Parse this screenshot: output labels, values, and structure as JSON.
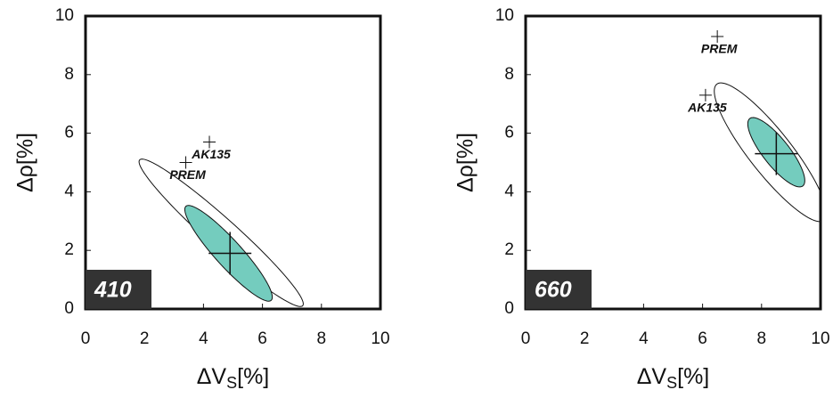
{
  "chart_data": [
    {
      "type": "scatter",
      "panel_label": "410",
      "xlabel": [
        "ΔV",
        "S",
        "[%]"
      ],
      "ylabel": "Δρ[%]",
      "xlim": [
        0,
        10
      ],
      "ylim": [
        0,
        10
      ],
      "xticks": [
        0,
        2,
        4,
        6,
        8,
        10
      ],
      "yticks": [
        0,
        2,
        4,
        6,
        8,
        10
      ],
      "ellipses": [
        {
          "center_x": 4.6,
          "center_y": 2.6,
          "semi_major": 3.72,
          "semi_minor": 0.5,
          "angle": -42,
          "color": "none"
        },
        {
          "center_x": 4.85,
          "center_y": 1.9,
          "semi_major": 2.16,
          "semi_minor": 0.45,
          "angle": -48,
          "color": "#74ccbe"
        }
      ],
      "best_fit": {
        "x": 4.9,
        "y": 1.9
      },
      "points": [
        {
          "name": "AK135",
          "x": 4.2,
          "y": 5.7
        },
        {
          "name": "PREM",
          "x": 3.4,
          "y": 5.0
        }
      ]
    },
    {
      "type": "scatter",
      "panel_label": "660",
      "xlabel": [
        "ΔV",
        "S",
        "[%]"
      ],
      "ylabel": "Δρ[%]",
      "xlim": [
        0,
        10
      ],
      "ylim": [
        0,
        10
      ],
      "xticks": [
        0,
        2,
        4,
        6,
        8,
        10
      ],
      "yticks": [
        0,
        2,
        4,
        6,
        8,
        10
      ],
      "ellipses": [
        {
          "center_x": 8.3,
          "center_y": 5.35,
          "semi_major": 2.95,
          "semi_minor": 0.72,
          "angle": -52,
          "color": "none"
        },
        {
          "center_x": 8.5,
          "center_y": 5.35,
          "semi_major": 1.46,
          "semi_minor": 0.45,
          "angle": -52,
          "color": "#74ccbe"
        }
      ],
      "best_fit": {
        "x": 8.5,
        "y": 5.3
      },
      "points": [
        {
          "name": "PREM",
          "x": 6.5,
          "y": 9.3
        },
        {
          "name": "AK135",
          "x": 6.1,
          "y": 7.3
        }
      ]
    }
  ]
}
